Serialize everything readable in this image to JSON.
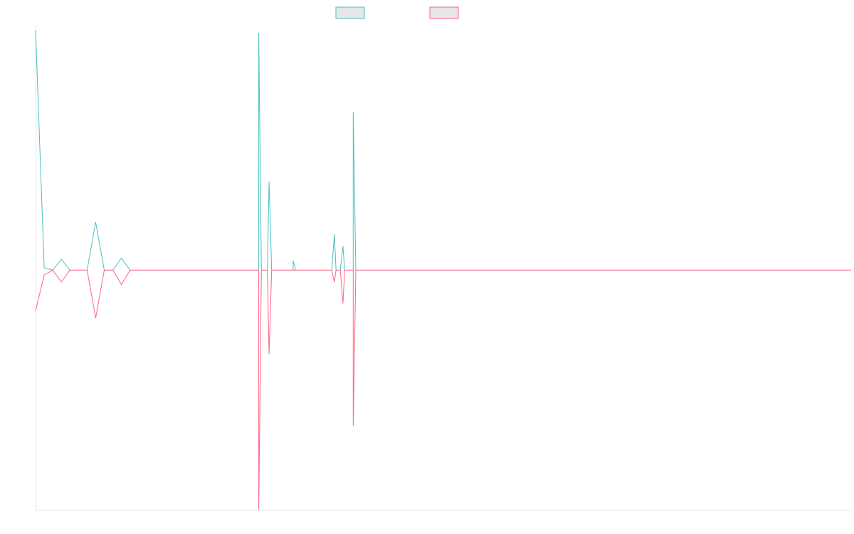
{
  "chart_data": {
    "type": "line",
    "title": "",
    "xlabel": "",
    "ylabel": "",
    "legend_position": "top-center",
    "grid": false,
    "x_count": 96,
    "ylim": [
      -1,
      1.02
    ],
    "series": [
      {
        "color": "#4bc0c0",
        "fill": "#e6e6e6",
        "values": [
          1.0,
          0.01,
          0.0,
          0.045,
          0.0,
          0.0,
          0.0,
          0.2,
          0.0,
          0.0,
          0.05,
          0.0,
          0.0,
          0.0,
          0.0,
          0.0,
          0.0,
          0.0,
          0.0,
          0.0,
          0.0,
          0.0,
          0.0,
          0.0,
          0.0,
          0.0,
          0.0,
          0.0,
          0.0,
          0.0,
          0.0,
          0.0,
          0.0,
          0.0,
          0.0,
          0.0,
          0.0,
          0.0,
          0.0,
          0.0,
          0.0,
          0.0,
          0.0,
          0.0,
          0.0,
          0.0,
          0.0,
          0.0,
          0.0,
          0.0,
          0.0,
          0.0,
          0.0,
          0.0,
          0.0,
          0.0,
          0.0,
          0.0,
          0.0,
          0.0,
          0.0,
          0.0,
          0.0,
          0.0,
          0.0,
          0.0,
          0.0,
          0.0,
          0.0,
          0.0,
          0.0,
          0.0,
          0.0,
          0.0,
          0.0,
          0.0,
          0.0,
          0.0,
          0.0,
          0.0,
          0.0,
          0.0,
          0.0,
          0.0,
          0.0,
          0.0,
          0.0,
          0.0,
          0.0,
          0.0,
          0.0,
          0.0,
          0.0,
          0.0,
          0.0,
          0.0
        ]
      },
      {
        "color": "#ff6384",
        "fill": "#e6e6e6",
        "values": [
          -0.17,
          -0.02,
          0.0,
          -0.05,
          0.0,
          0.0,
          0.0,
          -0.2,
          0.0,
          0.0,
          -0.06,
          0.0,
          0.0,
          0.0,
          0.0,
          0.0,
          0.0,
          0.0,
          0.0,
          0.0,
          0.0,
          0.0,
          0.0,
          0.0,
          0.0,
          0.0,
          0.0,
          0.0,
          0.0,
          0.0,
          0.0,
          0.0,
          0.0,
          0.0,
          0.0,
          0.0,
          0.0,
          0.0,
          0.0,
          0.0,
          0.0,
          0.0,
          0.0,
          0.0,
          0.0,
          0.0,
          0.0,
          0.0,
          0.0,
          0.0,
          0.0,
          0.0,
          0.0,
          0.0,
          0.0,
          0.0,
          0.0,
          0.0,
          0.0,
          0.0,
          0.0,
          0.0,
          0.0,
          0.0,
          0.0,
          0.0,
          0.0,
          0.0,
          0.0,
          0.0,
          0.0,
          0.0,
          0.0,
          0.0,
          0.0,
          0.0,
          0.0,
          0.0,
          0.0,
          0.0,
          0.0,
          0.0,
          0.0,
          0.0,
          0.0,
          0.0,
          0.0,
          0.0,
          0.0,
          0.0,
          0.0,
          0.0,
          0.0,
          0.0,
          0.0,
          0.0
        ]
      }
    ],
    "spikes": [
      {
        "x": 14.5,
        "series": 0,
        "y": 0.0
      },
      {
        "x": 26,
        "series": 0,
        "y": 0.99
      },
      {
        "x": 26,
        "series": 1,
        "y": -1.0
      },
      {
        "x": 27.2,
        "series": 0,
        "y": 0.37
      },
      {
        "x": 27.2,
        "series": 1,
        "y": -0.35
      },
      {
        "x": 30,
        "series": 0,
        "y": 0.04
      },
      {
        "x": 34.8,
        "series": 0,
        "y": 0.15
      },
      {
        "x": 34.8,
        "series": 1,
        "y": -0.05
      },
      {
        "x": 35.8,
        "series": 0,
        "y": 0.1
      },
      {
        "x": 35.8,
        "series": 1,
        "y": -0.14
      },
      {
        "x": 37,
        "series": 0,
        "y": 0.66
      },
      {
        "x": 37,
        "series": 1,
        "y": -0.65
      }
    ]
  }
}
